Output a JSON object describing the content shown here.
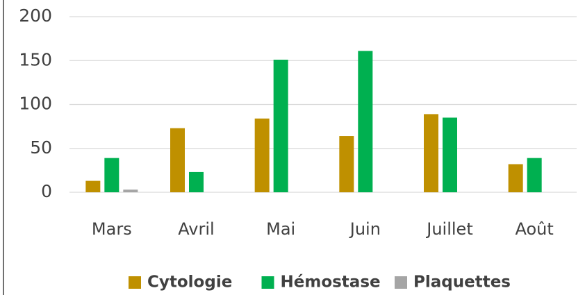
{
  "chart_data": {
    "type": "bar",
    "categories": [
      "Mars",
      "Avril",
      "Mai",
      "Juin",
      "Juillet",
      "Août"
    ],
    "series": [
      {
        "name": "Cytologie",
        "color": "#bf9000",
        "values": [
          13,
          73,
          84,
          64,
          89,
          32
        ]
      },
      {
        "name": "Hémostase",
        "color": "#00b050",
        "values": [
          39,
          23,
          151,
          161,
          85,
          39
        ]
      },
      {
        "name": "Plaquettes",
        "color": "#a5a5a5",
        "values": [
          3,
          0,
          0,
          0,
          0,
          0
        ]
      }
    ],
    "ylim": [
      0,
      200
    ],
    "yticks": [
      0,
      50,
      100,
      150,
      200
    ],
    "grid": true,
    "legend": "bottom"
  }
}
